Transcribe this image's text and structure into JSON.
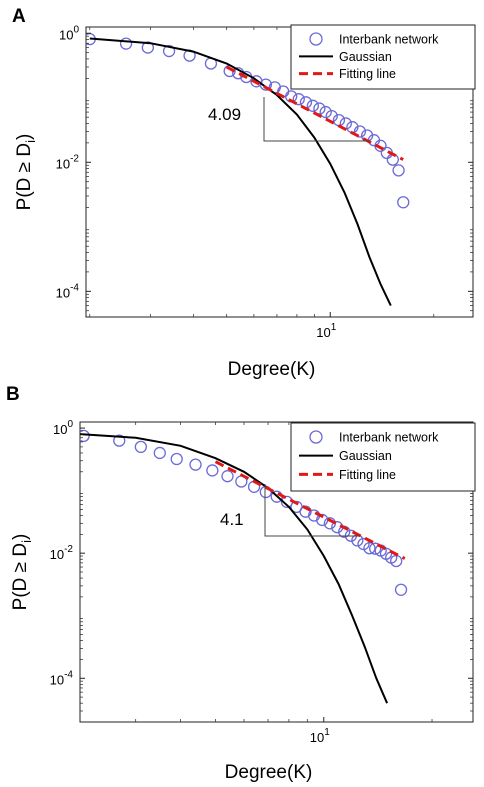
{
  "colors": {
    "scatter": "#6a6ad8",
    "gaussian": "#000000",
    "fit": "#e01818",
    "axes": "#222222"
  },
  "chart_data": [
    {
      "type": "scatter",
      "panel_label": "A",
      "xlabel": "Degree(K)",
      "ylabel": "P(D ≥ D",
      "ylabel_sub": "i",
      "ylabel_tail": ")",
      "xscale": "log",
      "yscale": "log",
      "xlim": [
        1.95,
        26
      ],
      "ylim": [
        4e-05,
        1.25
      ],
      "xticks": [
        {
          "value": 10,
          "base": "10",
          "exp": "1"
        }
      ],
      "yticks": [
        {
          "value": 1,
          "base": "10",
          "exp": "0"
        },
        {
          "value": 0.01,
          "base": "10",
          "exp": "-2"
        },
        {
          "value": 0.0001,
          "base": "10",
          "exp": "-4"
        }
      ],
      "grid": false,
      "legend_position": "top-right",
      "legend": [
        "Interbank network",
        "Gaussian",
        "Fitting line"
      ],
      "series": [
        {
          "name": "Interbank network",
          "kind": "markers",
          "color": "#6a6ad8",
          "x": [
            2.0,
            2.55,
            2.95,
            3.4,
            3.9,
            4.5,
            5.1,
            5.4,
            5.7,
            6.1,
            6.5,
            6.9,
            7.3,
            7.7,
            8.1,
            8.5,
            8.9,
            9.3,
            9.7,
            10.1,
            10.6,
            11.1,
            11.6,
            12.2,
            12.8,
            13.4,
            14.0,
            14.6,
            15.2,
            15.8,
            16.3
          ],
          "y": [
            0.81,
            0.69,
            0.6,
            0.53,
            0.45,
            0.34,
            0.26,
            0.24,
            0.21,
            0.18,
            0.16,
            0.145,
            0.125,
            0.105,
            0.095,
            0.085,
            0.075,
            0.068,
            0.06,
            0.052,
            0.045,
            0.04,
            0.035,
            0.03,
            0.026,
            0.022,
            0.018,
            0.014,
            0.011,
            0.0075,
            0.0024
          ]
        },
        {
          "name": "Gaussian",
          "kind": "line",
          "color": "#000000",
          "x": [
            2.0,
            3.0,
            4.0,
            5.0,
            6.0,
            7.0,
            8.0,
            9.0,
            10.0,
            11.0,
            12.0,
            13.0,
            14.0,
            15.0
          ],
          "y": [
            0.83,
            0.7,
            0.52,
            0.34,
            0.2,
            0.11,
            0.055,
            0.024,
            0.0095,
            0.0034,
            0.0011,
            0.00034,
            0.00013,
            6e-05
          ]
        },
        {
          "name": "Fitting line",
          "kind": "dashed",
          "color": "#e01818",
          "x": [
            5.0,
            16.3
          ],
          "y": [
            0.3,
            0.011
          ]
        }
      ],
      "annotations": [
        {
          "text": "4.09"
        }
      ]
    },
    {
      "type": "scatter",
      "panel_label": "B",
      "xlabel": "Degree(K)",
      "ylabel": "P(D ≥ D",
      "ylabel_sub": "i",
      "ylabel_tail": ")",
      "xscale": "log",
      "yscale": "log",
      "xlim": [
        2.1,
        26
      ],
      "ylim": [
        2e-05,
        1.25
      ],
      "xticks": [
        {
          "value": 10,
          "base": "10",
          "exp": "1"
        }
      ],
      "yticks": [
        {
          "value": 1,
          "base": "10",
          "exp": "0"
        },
        {
          "value": 0.01,
          "base": "10",
          "exp": "-2"
        },
        {
          "value": 0.0001,
          "base": "10",
          "exp": "-4"
        }
      ],
      "grid": false,
      "legend_position": "top-right",
      "legend": [
        "Interbank network",
        "Gaussian",
        "Fitting line"
      ],
      "series": [
        {
          "name": "Interbank network",
          "kind": "markers",
          "color": "#6a6ad8",
          "x": [
            2.15,
            2.7,
            3.1,
            3.5,
            3.9,
            4.4,
            4.9,
            5.4,
            5.9,
            6.4,
            6.9,
            7.4,
            7.9,
            8.4,
            8.9,
            9.4,
            9.9,
            10.4,
            10.9,
            11.4,
            11.9,
            12.4,
            12.9,
            13.4,
            13.9,
            14.4,
            14.9,
            15.4,
            15.9,
            16.4
          ],
          "y": [
            0.75,
            0.63,
            0.5,
            0.4,
            0.32,
            0.26,
            0.21,
            0.17,
            0.14,
            0.115,
            0.095,
            0.08,
            0.066,
            0.055,
            0.046,
            0.04,
            0.034,
            0.03,
            0.026,
            0.022,
            0.019,
            0.016,
            0.014,
            0.012,
            0.0118,
            0.011,
            0.0098,
            0.0085,
            0.0075,
            0.0026
          ]
        },
        {
          "name": "Gaussian",
          "kind": "line",
          "color": "#000000",
          "x": [
            2.1,
            3.0,
            4.0,
            5.0,
            6.0,
            7.0,
            8.0,
            9.0,
            10.0,
            11.0,
            12.0,
            13.0,
            14.0,
            15.0
          ],
          "y": [
            0.8,
            0.7,
            0.52,
            0.33,
            0.2,
            0.11,
            0.055,
            0.024,
            0.009,
            0.0032,
            0.001,
            0.00032,
            0.0001,
            4e-05
          ]
        },
        {
          "name": "Fitting line",
          "kind": "dashed",
          "color": "#e01818",
          "x": [
            5.0,
            16.8
          ],
          "y": [
            0.29,
            0.0082
          ]
        }
      ],
      "annotations": [
        {
          "text": "4.1"
        }
      ]
    }
  ]
}
